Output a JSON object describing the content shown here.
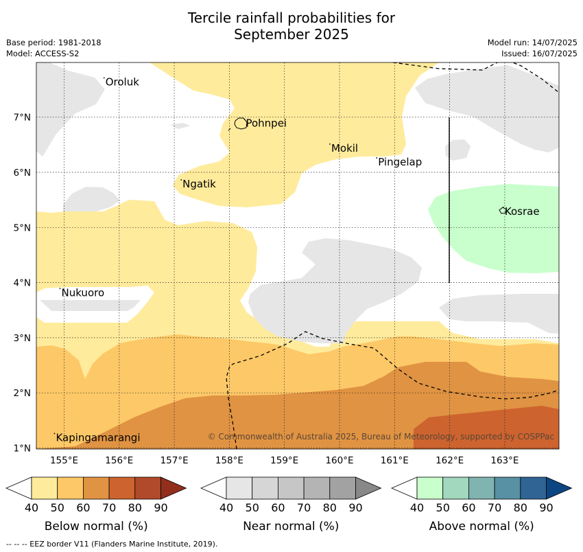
{
  "title_line1": "Tercile rainfall probabilities for",
  "title_line2": "September 2025",
  "meta_left": [
    "Base period: 1981-2018",
    "Model: ACCESS-S2"
  ],
  "meta_right": [
    "Model run: 14/07/2025",
    "Issued: 16/07/2025"
  ],
  "x_ticks": [
    "155°E",
    "156°E",
    "157°E",
    "158°E",
    "159°E",
    "160°E",
    "161°E",
    "162°E",
    "163°E"
  ],
  "y_ticks": [
    "7°N",
    "6°N",
    "5°N",
    "4°N",
    "3°N",
    "2°N",
    "1°N"
  ],
  "places": [
    {
      "name": "Oroluk",
      "lon": 155.75,
      "lat": 7.65
    },
    {
      "name": "Pohnpei",
      "lon": 158.3,
      "lat": 6.9
    },
    {
      "name": "Mokil",
      "lon": 159.85,
      "lat": 6.45
    },
    {
      "name": "Pingelap",
      "lon": 160.7,
      "lat": 6.2
    },
    {
      "name": "Ngatik",
      "lon": 157.15,
      "lat": 5.8
    },
    {
      "name": "Kosrae",
      "lon": 163.0,
      "lat": 5.3
    },
    {
      "name": "Nukuoro",
      "lon": 154.95,
      "lat": 3.83
    },
    {
      "name": "Kapingamarangi",
      "lon": 154.85,
      "lat": 1.2
    }
  ],
  "copyright": "© Commonwealth of Australia 2025, Bureau of Meteorology, supported by COSPPac",
  "legends": [
    {
      "title": "Below normal (%)",
      "labels": [
        "40",
        "50",
        "60",
        "70",
        "80",
        "90"
      ],
      "colors": [
        "#ffeb9c",
        "#fdc867",
        "#e09342",
        "#cd632f",
        "#b04a2a",
        "#922f1c"
      ]
    },
    {
      "title": "Near normal (%)",
      "labels": [
        "40",
        "50",
        "60",
        "70",
        "80",
        "90"
      ],
      "colors": [
        "#e6e6e6",
        "#d6d6d6",
        "#c6c6c6",
        "#b4b4b4",
        "#a2a2a2",
        "#888888"
      ]
    },
    {
      "title": "Above normal (%)",
      "labels": [
        "40",
        "50",
        "60",
        "70",
        "80",
        "90"
      ],
      "colors": [
        "#c8ffcc",
        "#a2d8bd",
        "#7fb4b0",
        "#5890a4",
        "#2f6494",
        "#0c4682"
      ]
    }
  ],
  "footnote": "--  --  -- EEZ border V11 (Flanders Marine Institute, 2019)."
}
